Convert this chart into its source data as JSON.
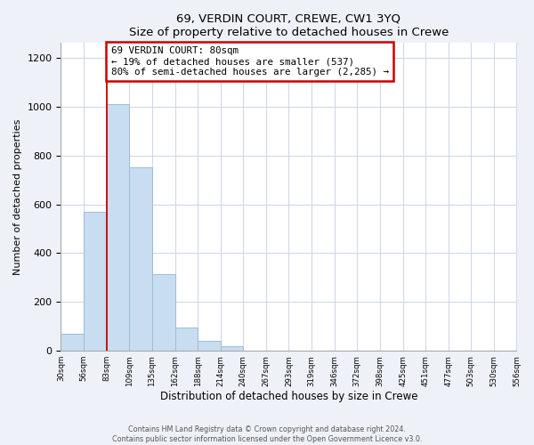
{
  "title": "69, VERDIN COURT, CREWE, CW1 3YQ",
  "subtitle": "Size of property relative to detached houses in Crewe",
  "xlabel": "Distribution of detached houses by size in Crewe",
  "ylabel": "Number of detached properties",
  "bar_edges": [
    30,
    56,
    83,
    109,
    135,
    162,
    188,
    214,
    240,
    267,
    293,
    319,
    346,
    372,
    398,
    425,
    451,
    477,
    503,
    530,
    556
  ],
  "bar_heights": [
    70,
    570,
    1010,
    750,
    315,
    95,
    40,
    20,
    0,
    0,
    0,
    0,
    0,
    0,
    0,
    0,
    0,
    0,
    0,
    0
  ],
  "bar_color": "#c8ddf0",
  "bar_edge_color": "#9bbdd8",
  "property_line_x": 83,
  "property_line_color": "#cc0000",
  "annotation_line1": "69 VERDIN COURT: 80sqm",
  "annotation_line2": "← 19% of detached houses are smaller (537)",
  "annotation_line3": "80% of semi-detached houses are larger (2,285) →",
  "annotation_box_color": "#ffffff",
  "annotation_box_edge_color": "#cc0000",
  "ylim": [
    0,
    1260
  ],
  "yticks": [
    0,
    200,
    400,
    600,
    800,
    1000,
    1200
  ],
  "tick_labels": [
    "30sqm",
    "56sqm",
    "83sqm",
    "109sqm",
    "135sqm",
    "162sqm",
    "188sqm",
    "214sqm",
    "240sqm",
    "267sqm",
    "293sqm",
    "319sqm",
    "346sqm",
    "372sqm",
    "398sqm",
    "425sqm",
    "451sqm",
    "477sqm",
    "503sqm",
    "530sqm",
    "556sqm"
  ],
  "footer_text": "Contains HM Land Registry data © Crown copyright and database right 2024.\nContains public sector information licensed under the Open Government Licence v3.0.",
  "grid_color": "#d0d8e8",
  "plot_bg_color": "#ffffff",
  "fig_bg_color": "#eef2f8"
}
